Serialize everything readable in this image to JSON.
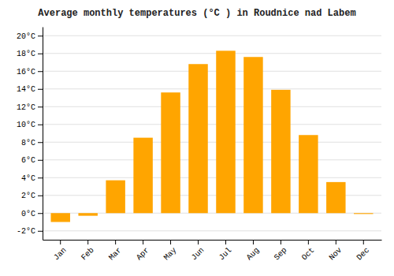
{
  "chart_data": {
    "type": "bar",
    "title": "Average monthly temperatures (°C ) in Roudnice nad Labem",
    "categories": [
      "Jan",
      "Feb",
      "Mar",
      "Apr",
      "May",
      "Jun",
      "Jul",
      "Aug",
      "Sep",
      "Oct",
      "Nov",
      "Dec"
    ],
    "values": [
      -1.0,
      -0.3,
      3.7,
      8.5,
      13.6,
      16.8,
      18.3,
      17.6,
      13.9,
      8.8,
      3.5,
      -0.1
    ],
    "color": "#FFA500",
    "ylim": [
      -3,
      21
    ],
    "yticks": [
      {
        "value": -2,
        "label": "-2°C"
      },
      {
        "value": 0,
        "label": "0°C"
      },
      {
        "value": 2,
        "label": "2°C"
      },
      {
        "value": 4,
        "label": "4°C"
      },
      {
        "value": 6,
        "label": "6°C"
      },
      {
        "value": 8,
        "label": "8°C"
      },
      {
        "value": 10,
        "label": "10°C"
      },
      {
        "value": 12,
        "label": "12°C"
      },
      {
        "value": 14,
        "label": "14°C"
      },
      {
        "value": 16,
        "label": "16°C"
      },
      {
        "value": 18,
        "label": "18°C"
      },
      {
        "value": 20,
        "label": "20°C"
      }
    ],
    "grid": true
  }
}
